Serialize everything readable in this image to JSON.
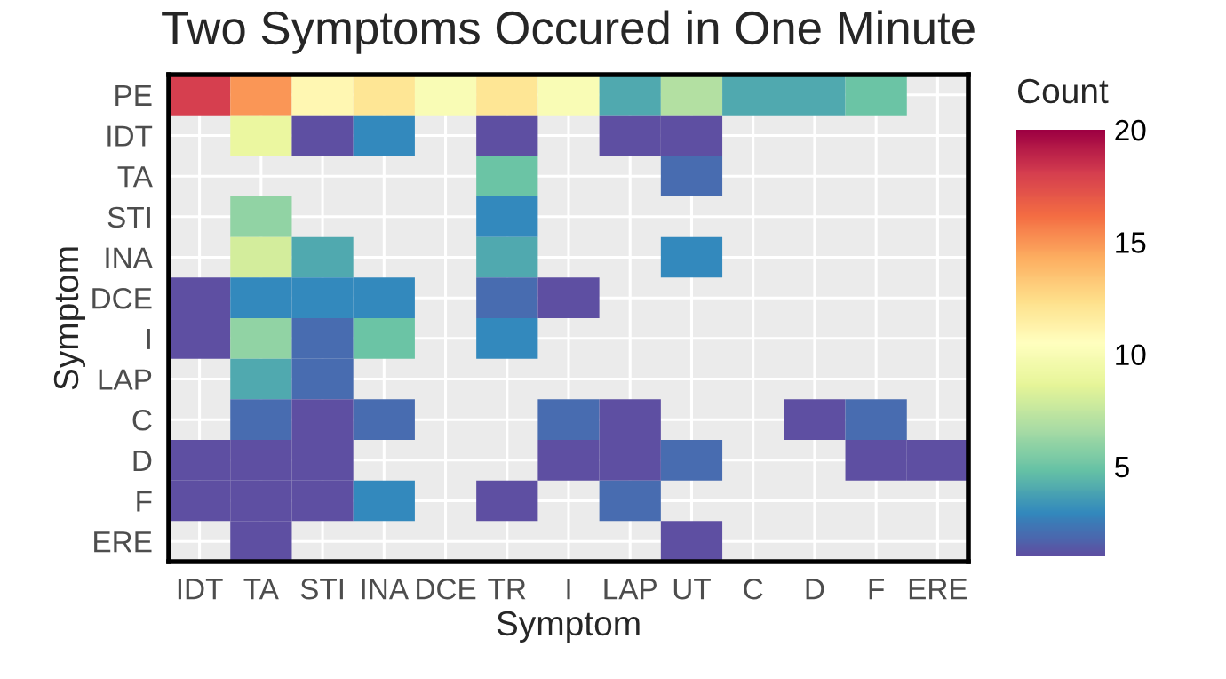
{
  "chart_data": {
    "type": "heatmap",
    "title": "Two Symptoms Occured in One Minute",
    "xlabel": "Symptom",
    "ylabel": "Symptom",
    "clabel": "Count",
    "categories": [
      "IDT",
      "TA",
      "STI",
      "INA",
      "DCE",
      "TR",
      "I",
      "LAP",
      "UT",
      "C",
      "D",
      "F",
      "ERE"
    ],
    "y_categories": [
      "PE",
      "IDT",
      "TA",
      "STI",
      "INA",
      "DCE",
      "I",
      "LAP",
      "C",
      "D",
      "F",
      "ERE"
    ],
    "cells": [
      [
        18,
        15,
        11,
        12,
        10,
        12,
        10,
        4,
        7,
        4,
        4,
        5,
        null
      ],
      [
        null,
        9,
        1,
        3,
        null,
        1,
        null,
        1,
        1,
        null,
        null,
        null,
        null
      ],
      [
        null,
        null,
        null,
        null,
        null,
        5,
        null,
        null,
        2,
        null,
        null,
        null,
        null
      ],
      [
        null,
        6,
        null,
        null,
        null,
        3,
        null,
        null,
        null,
        null,
        null,
        null,
        null
      ],
      [
        null,
        8,
        4,
        null,
        null,
        4,
        null,
        null,
        3,
        null,
        null,
        null,
        null
      ],
      [
        1,
        3,
        3,
        3,
        null,
        2,
        1,
        null,
        null,
        null,
        null,
        null,
        null
      ],
      [
        1,
        6,
        2,
        5,
        null,
        3,
        null,
        null,
        null,
        null,
        null,
        null,
        null
      ],
      [
        null,
        4,
        2,
        null,
        null,
        null,
        null,
        null,
        null,
        null,
        null,
        null,
        null
      ],
      [
        null,
        2,
        1,
        2,
        null,
        null,
        2,
        1,
        null,
        null,
        1,
        2,
        null
      ],
      [
        1,
        1,
        1,
        null,
        null,
        null,
        1,
        1,
        2,
        null,
        null,
        1,
        1
      ],
      [
        1,
        1,
        1,
        3,
        null,
        1,
        null,
        2,
        null,
        null,
        null,
        null,
        null
      ],
      [
        null,
        1,
        null,
        null,
        null,
        null,
        null,
        null,
        1,
        null,
        null,
        null,
        null
      ]
    ],
    "clim": [
      1,
      20
    ],
    "cticks": [
      5,
      10,
      15,
      20
    ],
    "grid": true
  }
}
